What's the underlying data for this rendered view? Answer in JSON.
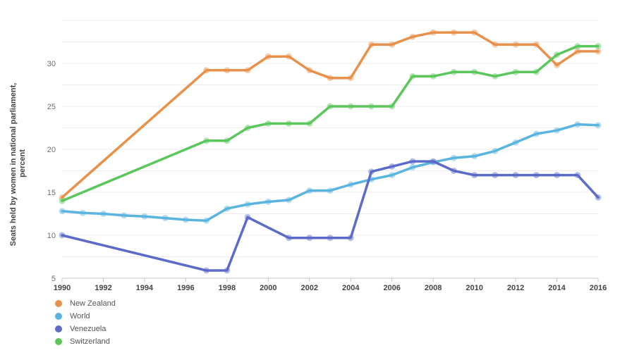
{
  "chart_data": {
    "type": "line",
    "title": "",
    "xlabel": "",
    "ylabel": "Seats held by women in national parliament, percent",
    "ylabel_lines": [
      "Seats held by women in national parliament,",
      "percent"
    ],
    "xlim": [
      1990,
      2016
    ],
    "ylim": [
      5,
      35
    ],
    "x_ticks": [
      "1990",
      "1992",
      "1994",
      "1996",
      "1998",
      "2000",
      "2002",
      "2004",
      "2006",
      "2008",
      "2010",
      "2012",
      "2014",
      "2016"
    ],
    "y_ticks": [
      "5",
      "10",
      "15",
      "20",
      "25",
      "30"
    ],
    "grid": "horizontal",
    "legend_position": "bottom-left",
    "series": [
      {
        "name": "New Zealand",
        "color": "#e8914a",
        "points": [
          [
            1990,
            14.4
          ],
          [
            1997,
            29.2
          ],
          [
            1998,
            29.2
          ],
          [
            1999,
            29.2
          ],
          [
            2000,
            30.8
          ],
          [
            2001,
            30.8
          ],
          [
            2002,
            29.2
          ],
          [
            2003,
            28.3
          ],
          [
            2004,
            28.3
          ],
          [
            2005,
            32.2
          ],
          [
            2006,
            32.2
          ],
          [
            2007,
            33.1
          ],
          [
            2008,
            33.6
          ],
          [
            2009,
            33.6
          ],
          [
            2010,
            33.6
          ],
          [
            2011,
            32.2
          ],
          [
            2012,
            32.2
          ],
          [
            2013,
            32.2
          ],
          [
            2014,
            29.8
          ],
          [
            2015,
            31.4
          ],
          [
            2016,
            31.4
          ]
        ]
      },
      {
        "name": "World",
        "color": "#5ab4e0",
        "points": [
          [
            1990,
            12.8
          ],
          [
            1991,
            12.6
          ],
          [
            1992,
            12.5
          ],
          [
            1993,
            12.3
          ],
          [
            1994,
            12.2
          ],
          [
            1995,
            12.0
          ],
          [
            1996,
            11.8
          ],
          [
            1997,
            11.7
          ],
          [
            1998,
            13.1
          ],
          [
            1999,
            13.6
          ],
          [
            2000,
            13.9
          ],
          [
            2001,
            14.1
          ],
          [
            2002,
            15.2
          ],
          [
            2003,
            15.2
          ],
          [
            2004,
            15.9
          ],
          [
            2005,
            16.5
          ],
          [
            2006,
            17.0
          ],
          [
            2007,
            17.9
          ],
          [
            2008,
            18.5
          ],
          [
            2009,
            19.0
          ],
          [
            2010,
            19.2
          ],
          [
            2011,
            19.8
          ],
          [
            2012,
            20.8
          ],
          [
            2013,
            21.8
          ],
          [
            2014,
            22.2
          ],
          [
            2015,
            22.9
          ],
          [
            2016,
            22.8
          ]
        ]
      },
      {
        "name": "Venezuela",
        "color": "#5c6bc9",
        "points": [
          [
            1990,
            10.0
          ],
          [
            1997,
            5.9
          ],
          [
            1998,
            5.9
          ],
          [
            1999,
            12.1
          ],
          [
            2001,
            9.7
          ],
          [
            2002,
            9.7
          ],
          [
            2003,
            9.7
          ],
          [
            2004,
            9.7
          ],
          [
            2005,
            17.4
          ],
          [
            2006,
            18.0
          ],
          [
            2007,
            18.6
          ],
          [
            2008,
            18.6
          ],
          [
            2009,
            17.5
          ],
          [
            2010,
            17.0
          ],
          [
            2011,
            17.0
          ],
          [
            2012,
            17.0
          ],
          [
            2013,
            17.0
          ],
          [
            2014,
            17.0
          ],
          [
            2015,
            17.0
          ],
          [
            2016,
            14.4
          ]
        ]
      },
      {
        "name": "Switzerland",
        "color": "#5bc65b",
        "points": [
          [
            1990,
            14.0
          ],
          [
            1997,
            21.0
          ],
          [
            1998,
            21.0
          ],
          [
            1999,
            22.5
          ],
          [
            2000,
            23.0
          ],
          [
            2001,
            23.0
          ],
          [
            2002,
            23.0
          ],
          [
            2003,
            25.0
          ],
          [
            2004,
            25.0
          ],
          [
            2005,
            25.0
          ],
          [
            2006,
            25.0
          ],
          [
            2007,
            28.5
          ],
          [
            2008,
            28.5
          ],
          [
            2009,
            29.0
          ],
          [
            2010,
            29.0
          ],
          [
            2011,
            28.5
          ],
          [
            2012,
            29.0
          ],
          [
            2013,
            29.0
          ],
          [
            2014,
            31.0
          ],
          [
            2015,
            32.0
          ],
          [
            2016,
            32.0
          ]
        ]
      }
    ]
  }
}
